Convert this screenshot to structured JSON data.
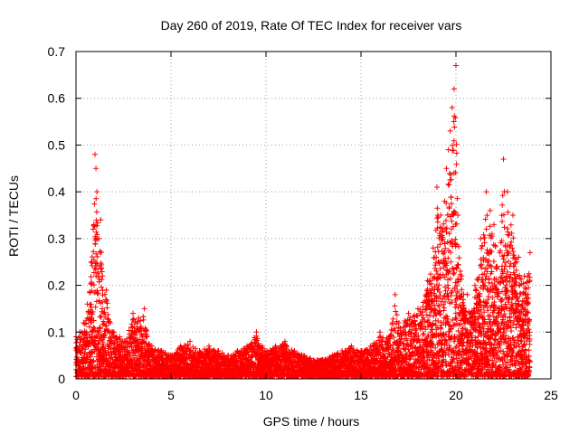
{
  "chart_data": {
    "type": "scatter",
    "title": "Day 260 of 2019, Rate Of TEC Index for receiver vars",
    "xlabel": "GPS time / hours",
    "ylabel": "ROTI / TECUs",
    "xlim": [
      0,
      25
    ],
    "ylim": [
      0,
      0.7
    ],
    "xticks": [
      0,
      5,
      10,
      15,
      20,
      25
    ],
    "xtick_labels": [
      "0",
      "5",
      "10",
      "15",
      "20",
      "25"
    ],
    "yticks": [
      0,
      0.1,
      0.2,
      0.3,
      0.4,
      0.5,
      0.6,
      0.7
    ],
    "ytick_labels": [
      "0",
      "0.1",
      "0.2",
      "0.3",
      "0.4",
      "0.5",
      "0.6",
      "0.7"
    ],
    "grid": true,
    "marker": "+",
    "color": "#ff0000",
    "series": [
      {
        "name": "ROTI",
        "x": [
          0.0,
          0.2,
          0.4,
          0.6,
          0.8,
          0.9,
          1.0,
          1.05,
          1.1,
          1.2,
          1.3,
          1.4,
          1.6,
          1.8,
          2.0,
          2.3,
          2.6,
          3.0,
          3.3,
          3.6,
          4.0,
          4.5,
          5.0,
          5.5,
          6.0,
          6.5,
          7.0,
          7.5,
          8.0,
          8.5,
          9.0,
          9.5,
          9.8,
          10.0,
          10.5,
          11.0,
          11.5,
          12.0,
          12.5,
          13.0,
          13.5,
          14.0,
          14.5,
          15.0,
          15.5,
          16.0,
          16.5,
          16.8,
          17.0,
          17.5,
          18.0,
          18.5,
          18.8,
          19.0,
          19.2,
          19.4,
          19.5,
          19.6,
          19.7,
          19.8,
          19.9,
          20.0,
          20.1,
          20.3,
          20.6,
          21.0,
          21.3,
          21.6,
          21.8,
          22.0,
          22.3,
          22.5,
          22.7,
          23.0,
          23.3,
          23.6,
          23.9
        ],
        "y": [
          0.09,
          0.1,
          0.12,
          0.16,
          0.25,
          0.32,
          0.48,
          0.45,
          0.4,
          0.3,
          0.34,
          0.22,
          0.19,
          0.12,
          0.1,
          0.09,
          0.08,
          0.14,
          0.13,
          0.15,
          0.07,
          0.06,
          0.05,
          0.07,
          0.08,
          0.06,
          0.07,
          0.06,
          0.05,
          0.06,
          0.07,
          0.1,
          0.07,
          0.06,
          0.07,
          0.08,
          0.06,
          0.05,
          0.04,
          0.04,
          0.05,
          0.06,
          0.07,
          0.06,
          0.07,
          0.1,
          0.09,
          0.18,
          0.12,
          0.14,
          0.15,
          0.21,
          0.28,
          0.41,
          0.35,
          0.38,
          0.45,
          0.49,
          0.53,
          0.58,
          0.62,
          0.67,
          0.35,
          0.22,
          0.18,
          0.2,
          0.3,
          0.4,
          0.36,
          0.33,
          0.27,
          0.47,
          0.4,
          0.35,
          0.26,
          0.22,
          0.27
        ]
      }
    ]
  }
}
